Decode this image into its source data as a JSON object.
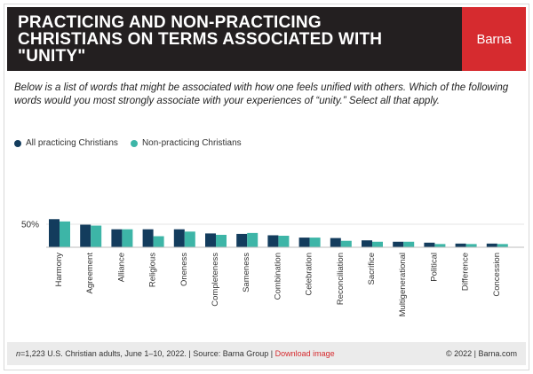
{
  "header": {
    "title_lines": [
      "PRACTICING AND NON-PRACTICING",
      "CHRISTIANS ON TERMS ASSOCIATED WITH",
      "\"UNITY\""
    ],
    "brand": "Barna"
  },
  "question": "Below is a list of words that might be associated with how one feels unified with others. Which of the following words would you most strongly associate with your experiences of “unity.” Select all that apply.",
  "colors": {
    "practicing": "#133c5d",
    "nonpracticing": "#3db5a7",
    "accent": "#d62b2f",
    "header_bg": "#231f20"
  },
  "chart_data": {
    "type": "bar",
    "title": "PRACTICING AND NON-PRACTICING CHRISTIANS ON TERMS ASSOCIATED WITH \"UNITY\"",
    "categories": [
      "Harmony",
      "Agreement",
      "Alliance",
      "Religious",
      "Oneness",
      "Completeness",
      "Sameness",
      "Combination",
      "Celebration",
      "Reconciliation",
      "Sacrifice",
      "Multigenerational",
      "Political",
      "Difference",
      "Concession"
    ],
    "series": [
      {
        "name": "All practicing Christians",
        "values": [
          61,
          49,
          39,
          39,
          39,
          30,
          29,
          26,
          21,
          20,
          15,
          12,
          10,
          8,
          8
        ]
      },
      {
        "name": "Non-practicing Christians",
        "values": [
          56,
          47,
          39,
          24,
          34,
          27,
          31,
          25,
          21,
          14,
          12,
          12,
          7,
          7,
          7
        ]
      }
    ],
    "yticks": [
      {
        "value": 50,
        "label": "50%"
      }
    ],
    "ylim": [
      0,
      100
    ],
    "xlabel": "",
    "ylabel": ""
  },
  "footer": {
    "n": "n",
    "note": "=1,223 U.S. Christian adults, June 1–10, 2022. | Source: Barna Group | ",
    "download": "Download image",
    "right": "© 2022 |  Barna.com"
  }
}
